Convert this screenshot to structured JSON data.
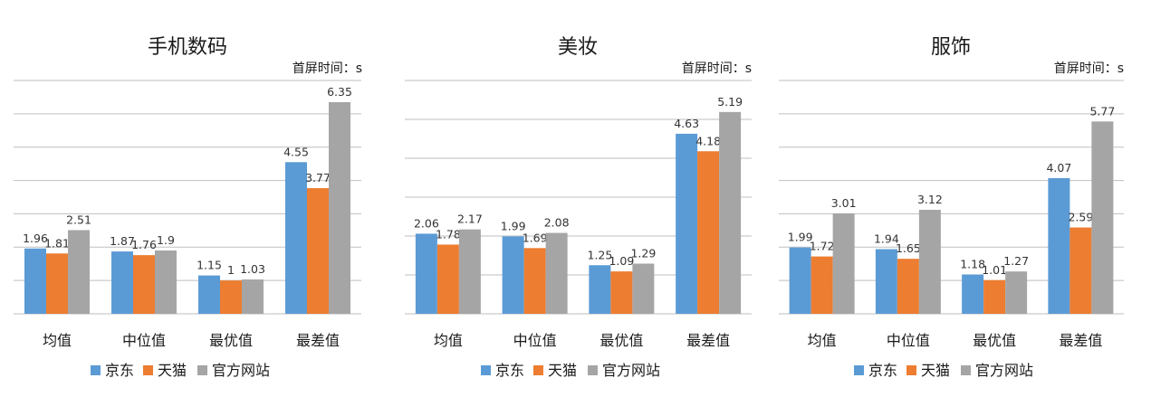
{
  "colors": {
    "jd": "#5b9bd5",
    "tmall": "#ed7d31",
    "official": "#a5a5a5"
  },
  "chart_data": [
    {
      "type": "bar",
      "title": "手机数码",
      "ylabel": "首屏时间：s",
      "categories": [
        "均值",
        "中位值",
        "最优值",
        "最差值"
      ],
      "ylim": [
        0,
        7
      ],
      "grid": true,
      "legend": "bottom",
      "series": [
        {
          "name": "京东",
          "values": [
            1.96,
            1.87,
            1.15,
            4.55
          ],
          "labels": [
            "1.96",
            "1.87",
            "1.15",
            "4.55"
          ]
        },
        {
          "name": "天猫",
          "values": [
            1.81,
            1.76,
            1,
            3.77
          ],
          "labels": [
            "1.81",
            "1.76",
            "1",
            "3.77"
          ]
        },
        {
          "name": "官方网站",
          "values": [
            2.51,
            1.9,
            1.03,
            6.35
          ],
          "labels": [
            "2.51",
            "1.9",
            "1.03",
            "6.35"
          ]
        }
      ]
    },
    {
      "type": "bar",
      "title": "美妆",
      "ylabel": "首屏时间：s",
      "categories": [
        "均值",
        "中位值",
        "最优值",
        "最差值"
      ],
      "ylim": [
        0,
        6
      ],
      "grid": true,
      "legend": "bottom",
      "series": [
        {
          "name": "京东",
          "values": [
            2.06,
            1.99,
            1.25,
            4.63
          ],
          "labels": [
            "2.06",
            "1.99",
            "1.25",
            "4.63"
          ]
        },
        {
          "name": "天猫",
          "values": [
            1.78,
            1.69,
            1.09,
            4.18
          ],
          "labels": [
            "1.78",
            "1.69",
            "1.09",
            "4.18"
          ]
        },
        {
          "name": "官方网站",
          "values": [
            2.17,
            2.08,
            1.29,
            5.19
          ],
          "labels": [
            "2.17",
            "2.08",
            "1.29",
            "5.19"
          ]
        }
      ]
    },
    {
      "type": "bar",
      "title": "服饰",
      "ylabel": "首屏时间：s",
      "categories": [
        "均值",
        "中位值",
        "最优值",
        "最差值"
      ],
      "ylim": [
        0,
        7
      ],
      "grid": true,
      "legend": "bottom",
      "series": [
        {
          "name": "京东",
          "values": [
            1.99,
            1.94,
            1.18,
            4.07
          ],
          "labels": [
            "1.99",
            "1.94",
            "1.18",
            "4.07"
          ]
        },
        {
          "name": "天猫",
          "values": [
            1.72,
            1.65,
            1.01,
            2.59
          ],
          "labels": [
            "1.72",
            "1.65",
            "1.01",
            "2.59"
          ]
        },
        {
          "name": "官方网站",
          "values": [
            3.01,
            3.12,
            1.27,
            5.77
          ],
          "labels": [
            "3.01",
            "3.12",
            "1.27",
            "5.77"
          ]
        }
      ]
    }
  ]
}
